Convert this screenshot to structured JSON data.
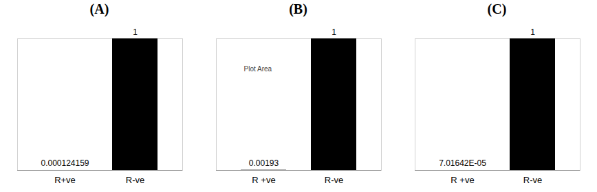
{
  "chart_data": [
    {
      "type": "bar",
      "title": "(A)",
      "categories": [
        "R+ve",
        "R-ve"
      ],
      "values": [
        0.000124159,
        1
      ],
      "value_labels": [
        "0.000124159",
        "1"
      ],
      "color": "#000000",
      "ylim": [
        0,
        1
      ],
      "data_labels": true,
      "tick_labels": "x",
      "grid": false
    },
    {
      "type": "bar",
      "title": "(B)",
      "categories": [
        "R +ve",
        "R-ve"
      ],
      "values": [
        0.00193,
        1
      ],
      "value_labels": [
        "0.00193",
        "1"
      ],
      "annotation": "Plot Area",
      "color": "#000000",
      "ylim": [
        0,
        1
      ],
      "data_labels": true,
      "tick_labels": "x",
      "grid": false
    },
    {
      "type": "bar",
      "title": "(C)",
      "categories": [
        "R +ve",
        "R-ve"
      ],
      "values": [
        7.01642e-05,
        1
      ],
      "value_labels": [
        "7.01642E-05",
        "1"
      ],
      "color": "#000000",
      "ylim": [
        0,
        1
      ],
      "data_labels": true,
      "tick_labels": "x",
      "grid": false
    }
  ]
}
